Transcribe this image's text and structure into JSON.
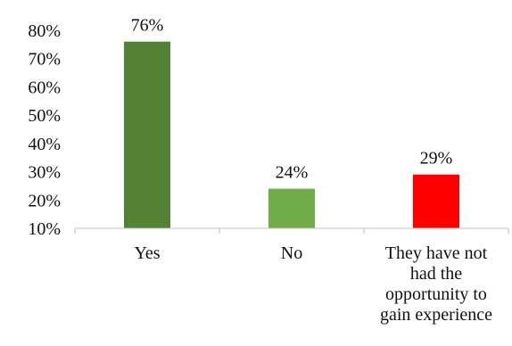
{
  "chart_data": {
    "type": "bar",
    "categories": [
      [
        "Yes"
      ],
      [
        "No"
      ],
      [
        "They have not",
        "had the",
        "opportunity to",
        "gain experience"
      ]
    ],
    "values": [
      76,
      24,
      29
    ],
    "data_labels": [
      "76%",
      "24%",
      "29%"
    ],
    "colors": [
      "#548235",
      "#70ad47",
      "#ff0000"
    ],
    "ylim": [
      10,
      80
    ],
    "yticks": [
      10,
      20,
      30,
      40,
      50,
      60,
      70,
      80
    ],
    "ytick_labels": [
      "10%",
      "20%",
      "30%",
      "40%",
      "50%",
      "60%",
      "70%",
      "80%"
    ],
    "title": "",
    "xlabel": "",
    "ylabel": "",
    "grid": false,
    "legend": "none",
    "axis_color": "#bfbfbf"
  }
}
